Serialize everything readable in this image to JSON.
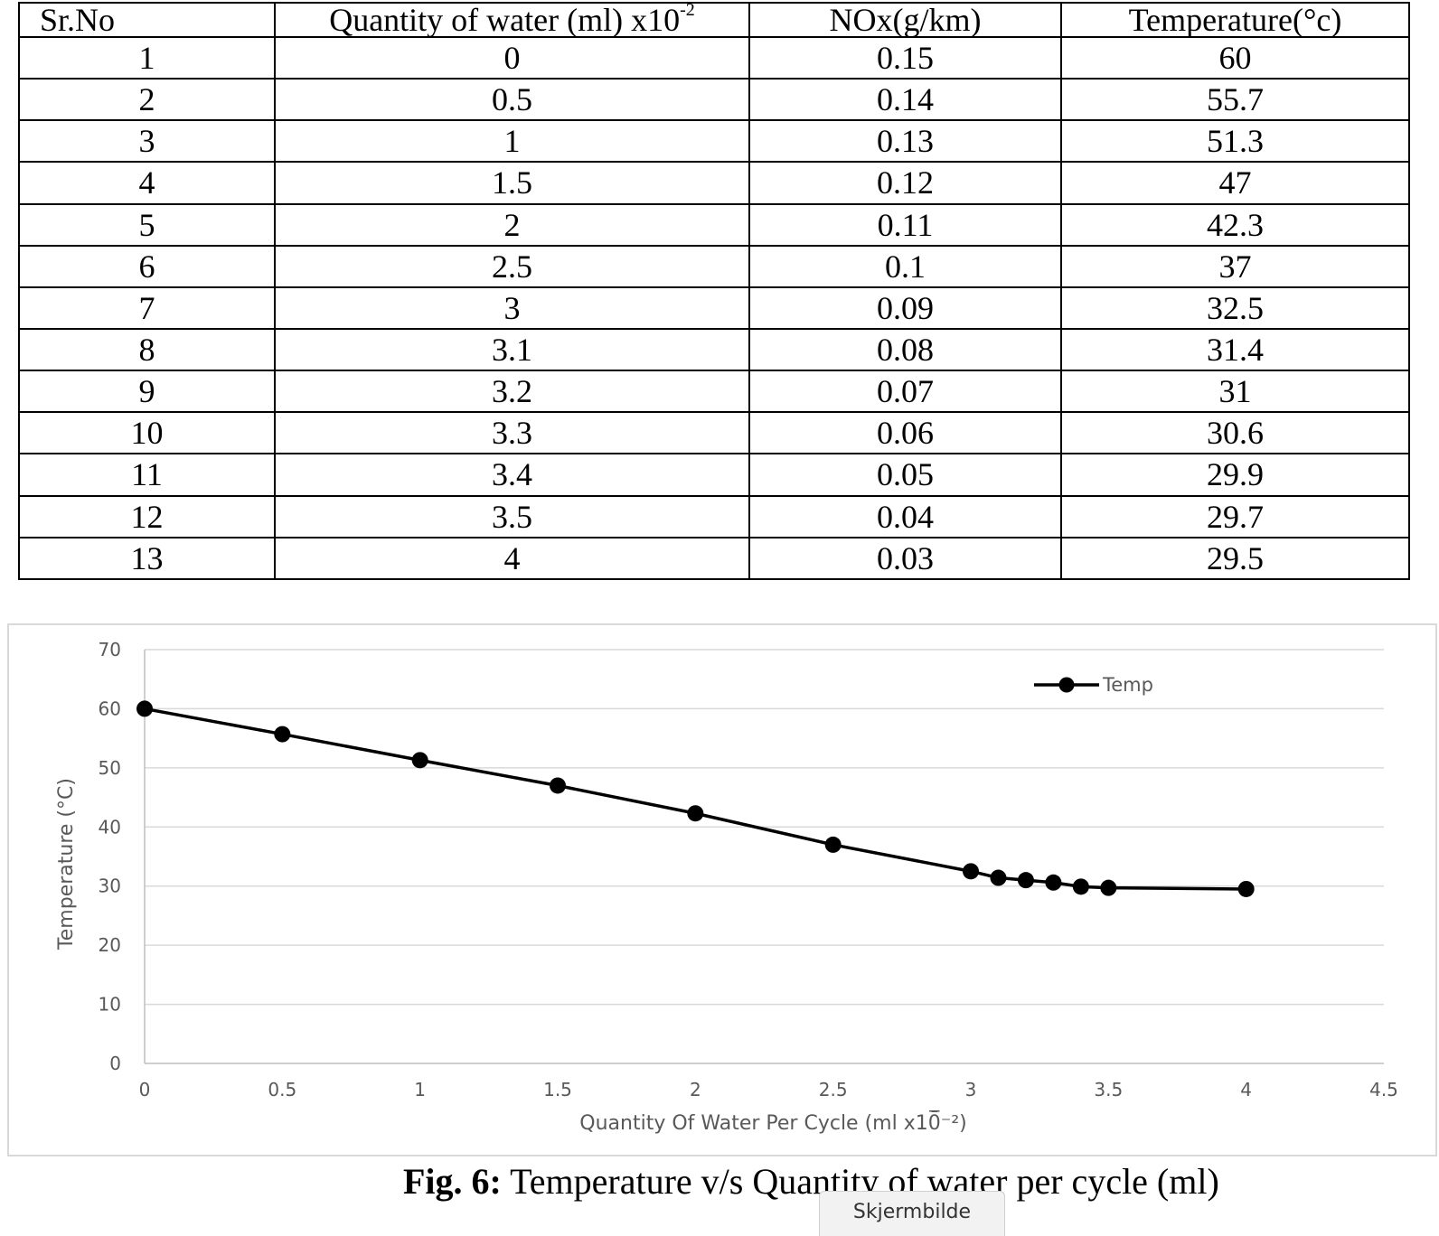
{
  "table": {
    "headers": {
      "sr": "Sr.No",
      "water": "Quantity of water (ml) x10",
      "water_exp": "-2",
      "nox": "NOx(g/km)",
      "temp": "Temperature(°c)"
    },
    "rows": [
      [
        "1",
        "0",
        "0.15",
        "60"
      ],
      [
        "2",
        "0.5",
        "0.14",
        "55.7"
      ],
      [
        "3",
        "1",
        "0.13",
        "51.3"
      ],
      [
        "4",
        "1.5",
        "0.12",
        "47"
      ],
      [
        "5",
        "2",
        "0.11",
        "42.3"
      ],
      [
        "6",
        "2.5",
        "0.1",
        "37"
      ],
      [
        "7",
        "3",
        "0.09",
        "32.5"
      ],
      [
        "8",
        "3.1",
        "0.08",
        "31.4"
      ],
      [
        "9",
        "3.2",
        "0.07",
        "31"
      ],
      [
        "10",
        "3.3",
        "0.06",
        "30.6"
      ],
      [
        "11",
        "3.4",
        "0.05",
        "29.9"
      ],
      [
        "12",
        "3.5",
        "0.04",
        "29.7"
      ],
      [
        "13",
        "4",
        "0.03",
        "29.5"
      ]
    ]
  },
  "chart_data": {
    "type": "line",
    "title": "",
    "xlabel": "Quantity Of Water Per Cycle (ml x10̅̄⁻²)",
    "ylabel": "Temperature (°C)",
    "xlim": [
      0,
      4.5
    ],
    "ylim": [
      0,
      70
    ],
    "x_ticks": [
      "0",
      "0.5",
      "1",
      "1.5",
      "2",
      "2.5",
      "3",
      "3.5",
      "4",
      "4.5"
    ],
    "y_ticks": [
      "0",
      "10",
      "20",
      "30",
      "40",
      "50",
      "60",
      "70"
    ],
    "grid": true,
    "legend_position": "top-right",
    "series": [
      {
        "name": "Temp",
        "color": "#000000",
        "x": [
          0,
          0.5,
          1,
          1.5,
          2,
          2.5,
          3,
          3.1,
          3.2,
          3.3,
          3.4,
          3.5,
          4
        ],
        "y": [
          60,
          55.7,
          51.3,
          47,
          42.3,
          37,
          32.5,
          31.4,
          31,
          30.6,
          29.9,
          29.7,
          29.5
        ]
      }
    ]
  },
  "caption": {
    "label": "Fig. 6:",
    "text": " Temperature v/s Quantity of water per cycle (ml)"
  },
  "tooltip": {
    "text": "Skjermbilde"
  }
}
